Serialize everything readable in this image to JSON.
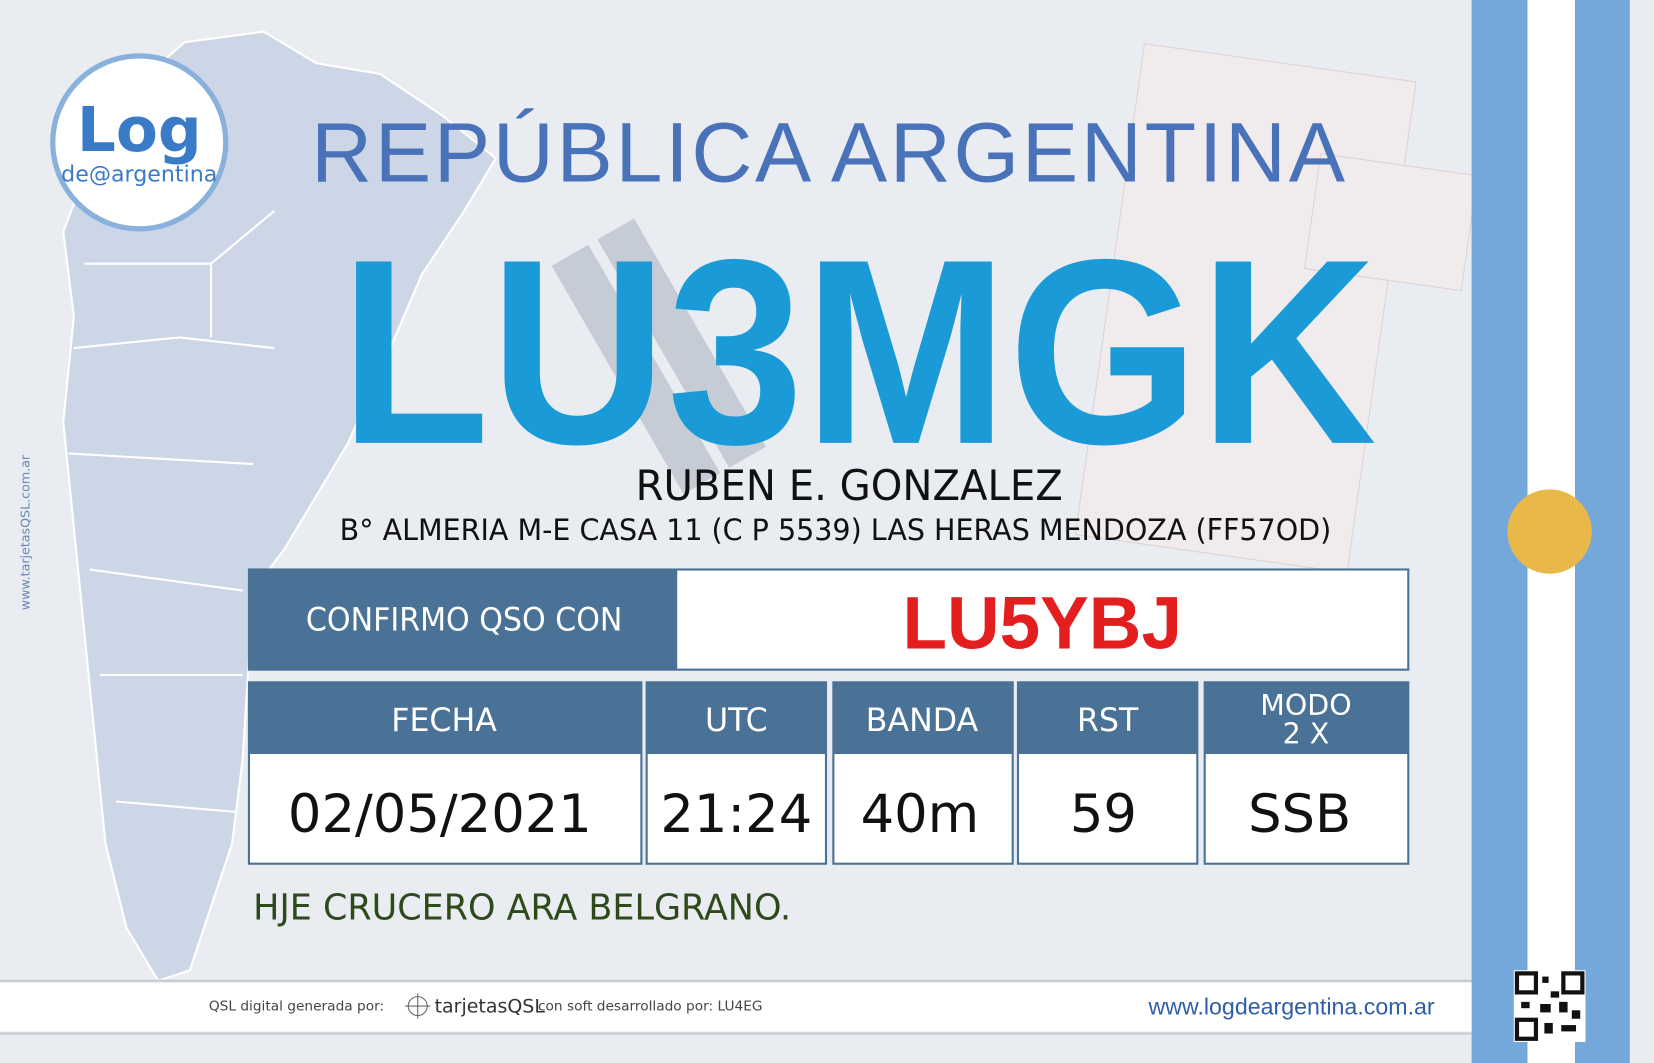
{
  "logo": {
    "title": "Log",
    "subtitle": "de@argentina"
  },
  "side_text": "www.tarjetasQSL.com.ar",
  "header": {
    "country": "REPÚBLICA  ARGENTINA",
    "callsign": "LU3MGK",
    "operator": "RUBEN E. GONZALEZ",
    "address": "B° ALMERIA M-E CASA 11 (C P 5539) LAS HERAS  MENDOZA  (FF57OD)"
  },
  "confirmation": {
    "label": "CONFIRMO QSO CON",
    "callsign": "LU5YBJ"
  },
  "table": {
    "headers": [
      "FECHA",
      "UTC",
      "BANDA",
      "RST",
      "MODO"
    ],
    "mode_note": "2 X",
    "rows": [
      [
        "02/05/2021",
        "21:24",
        "40m",
        "59",
        "SSB"
      ]
    ]
  },
  "note": "HJE CRUCERO ARA BELGRANO.",
  "footer": {
    "generated_by": "QSL digital generada por:",
    "brand": "tarjetasQSL",
    "software": "con soft desarrollado por: LU4EG",
    "website": "www.logdeargentina.com.ar"
  }
}
